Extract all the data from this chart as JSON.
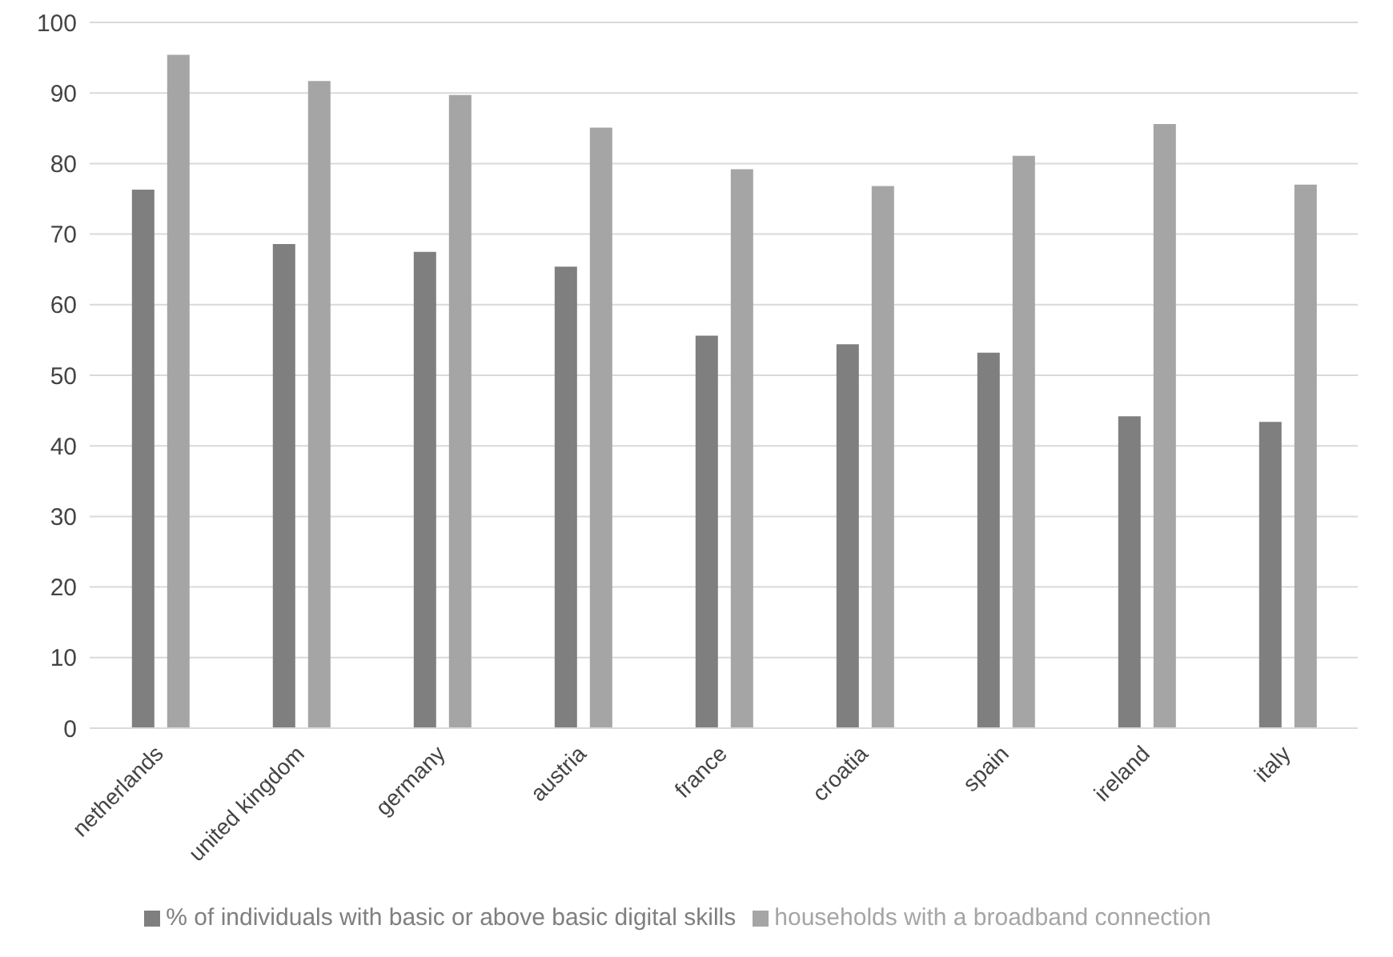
{
  "chart_data": {
    "type": "bar",
    "categories": [
      "netherlands",
      "united kingdom",
      "germany",
      "austria",
      "france",
      "croatia",
      "spain",
      "ireland",
      "italy"
    ],
    "series": [
      {
        "name": "% of individuals with basic or above basic digital skills",
        "color": "#7f7f7f",
        "values": [
          76.3,
          68.6,
          67.5,
          65.4,
          55.6,
          54.4,
          53.2,
          44.2,
          43.4
        ]
      },
      {
        "name": "households with a broadband connection",
        "color": "#a5a5a5",
        "values": [
          95.4,
          91.7,
          89.7,
          85.1,
          79.2,
          76.8,
          81.1,
          85.6,
          77.0
        ]
      }
    ],
    "ylim": [
      0,
      100
    ],
    "yticks": [
      0,
      10,
      20,
      30,
      40,
      50,
      60,
      70,
      80,
      90,
      100
    ],
    "grid": "y",
    "legend": "bottom"
  }
}
